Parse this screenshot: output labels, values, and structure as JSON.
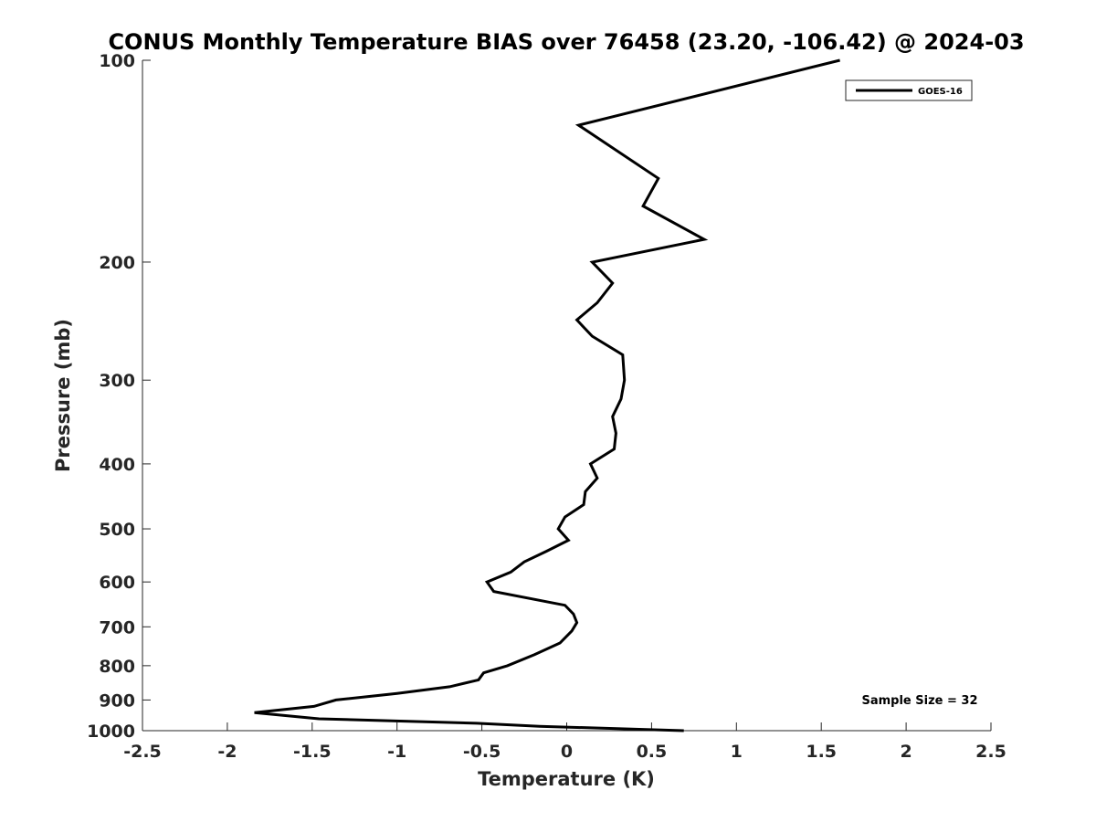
{
  "chart_data": {
    "type": "line",
    "title": "CONUS Monthly Temperature BIAS over 76458 (23.20, -106.42) @ 2024-03",
    "xlabel": "Temperature (K)",
    "ylabel": "Pressure (mb)",
    "xlim": [
      -2.5,
      2.5
    ],
    "ylim": [
      100,
      1000
    ],
    "y_scale": "log",
    "y_reversed": true,
    "x_ticks": [
      "-2.5",
      "-2",
      "-1.5",
      "-1",
      "-0.5",
      "0",
      "0.5",
      "1",
      "1.5",
      "2",
      "2.5"
    ],
    "y_ticks": [
      "100",
      "200",
      "300",
      "400",
      "500",
      "600",
      "700",
      "800",
      "900",
      "1000"
    ],
    "grid": false,
    "legend": {
      "position": "top-right",
      "entries": [
        "GOES-16"
      ]
    },
    "annotation": "Sample Size = 32",
    "series": [
      {
        "name": "GOES-16",
        "color": "#000000",
        "points": [
          [
            1.61,
            100
          ],
          [
            0.07,
            125
          ],
          [
            0.54,
            150
          ],
          [
            0.45,
            165
          ],
          [
            0.81,
            185
          ],
          [
            0.15,
            200
          ],
          [
            0.27,
            215
          ],
          [
            0.18,
            230
          ],
          [
            0.06,
            244
          ],
          [
            0.15,
            258
          ],
          [
            0.33,
            275
          ],
          [
            0.34,
            300
          ],
          [
            0.32,
            320
          ],
          [
            0.27,
            340
          ],
          [
            0.29,
            360
          ],
          [
            0.28,
            380
          ],
          [
            0.14,
            400
          ],
          [
            0.18,
            420
          ],
          [
            0.11,
            440
          ],
          [
            0.1,
            460
          ],
          [
            -0.01,
            480
          ],
          [
            -0.05,
            500
          ],
          [
            0.01,
            520
          ],
          [
            -0.12,
            540
          ],
          [
            -0.25,
            560
          ],
          [
            -0.33,
            580
          ],
          [
            -0.47,
            600
          ],
          [
            -0.43,
            620
          ],
          [
            -0.01,
            650
          ],
          [
            0.04,
            670
          ],
          [
            0.06,
            690
          ],
          [
            0.03,
            710
          ],
          [
            -0.04,
            740
          ],
          [
            -0.19,
            770
          ],
          [
            -0.35,
            800
          ],
          [
            -0.49,
            820
          ],
          [
            -0.52,
            840
          ],
          [
            -0.69,
            860
          ],
          [
            -1.0,
            880
          ],
          [
            -1.36,
            900
          ],
          [
            -1.49,
            920
          ],
          [
            -1.84,
            940
          ],
          [
            -1.46,
            960
          ],
          [
            -0.53,
            975
          ],
          [
            -0.16,
            985
          ],
          [
            0.69,
            1000
          ]
        ]
      }
    ]
  }
}
